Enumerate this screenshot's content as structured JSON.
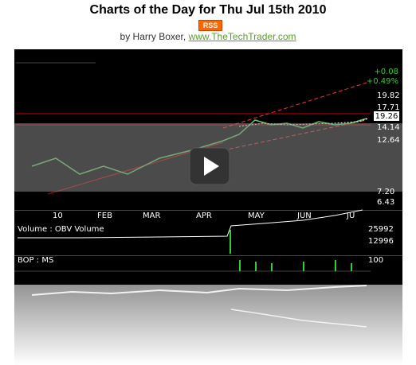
{
  "header": {
    "title": "Charts of the Day for Thu Jul 15th 2010",
    "badge": "RSS",
    "byline": "by Harry Boxer, ",
    "link": "www.TheTechTrader.com"
  },
  "video": {
    "change": "+0.08",
    "change_pct": "+0.49%",
    "price_levels": [
      "19.82",
      "17.71",
      "14.14",
      "12.64",
      "7.20",
      "6.43"
    ],
    "last_price": "19.26",
    "months": [
      "10",
      "FEB",
      "MAR",
      "APR",
      "MAY",
      "JUN",
      "JU"
    ],
    "volume_label": "Volume : OBV Volume",
    "volume_levels": [
      "25992",
      "12996"
    ],
    "bop_label": "BOP : MS",
    "bop_level": "100"
  }
}
